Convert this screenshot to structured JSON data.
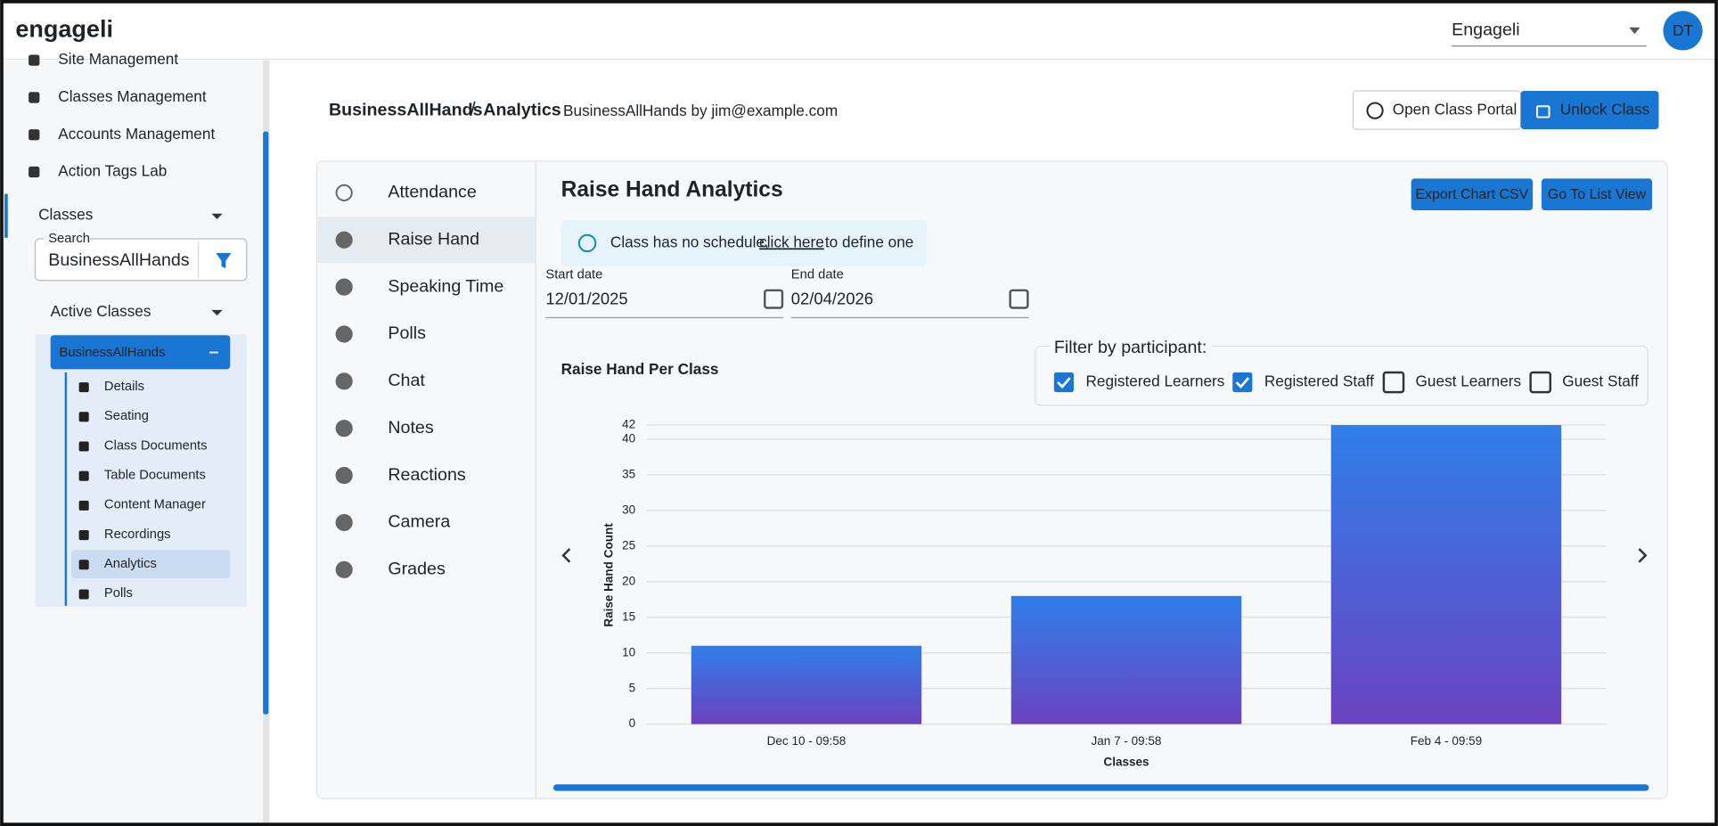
{
  "header": {
    "logo": "engageli",
    "org": "Engageli",
    "avatar": "DT"
  },
  "sidebar": {
    "nav": [
      "Site Management",
      "Classes Management",
      "Accounts Management",
      "Action Tags Lab"
    ],
    "classes_label": "Classes",
    "search_label": "Search",
    "search_value": "BusinessAllHands",
    "active_label": "Active Classes",
    "class_name": "BusinessAllHands",
    "class_items": [
      "Details",
      "Seating",
      "Class Documents",
      "Table Documents",
      "Content Manager",
      "Recordings",
      "Analytics",
      "Polls"
    ],
    "selected_item": 6
  },
  "breadcrumb": {
    "class": "BusinessAllHands",
    "separator": "/",
    "page": "Analytics",
    "subtitle": "BusinessAllHands by jim@example.com"
  },
  "buttons": {
    "open_portal": "Open Class Portal",
    "unlock": "Unlock Class",
    "export": "Export Chart CSV",
    "list_view": "Go To List View"
  },
  "tabs": [
    "Attendance",
    "Raise Hand",
    "Speaking Time",
    "Polls",
    "Chat",
    "Notes",
    "Reactions",
    "Camera",
    "Grades"
  ],
  "selected_tab": 1,
  "panel": {
    "title": "Raise Hand Analytics",
    "notice": "Class has no schedule,",
    "notice_link": "click here",
    "notice_end": "to define one",
    "start_label": "Start date",
    "start_value": "12/01/2025",
    "end_label": "End date",
    "end_value": "02/04/2026",
    "filter_label": "Filter by participant:",
    "filters": [
      {
        "label": "Registered Learners",
        "checked": true
      },
      {
        "label": "Registered Staff",
        "checked": true
      },
      {
        "label": "Guest Learners",
        "checked": false
      },
      {
        "label": "Guest Staff",
        "checked": false
      }
    ]
  },
  "chart_data": {
    "type": "bar",
    "title": "Raise Hand Per Class",
    "x_label": "Classes",
    "y_label": "Raise Hand Count",
    "categories": [
      "Dec 10 - 09:58",
      "Jan 7 - 09:58",
      "Feb 4 - 09:59"
    ],
    "values": [
      11,
      18,
      42
    ],
    "ylim": [
      0,
      42
    ],
    "yticks": [
      0,
      5,
      10,
      15,
      20,
      25,
      30,
      35,
      40,
      42
    ],
    "grid": true,
    "color_top": "#2f7ee9",
    "color_bottom": "#6b43c0"
  }
}
